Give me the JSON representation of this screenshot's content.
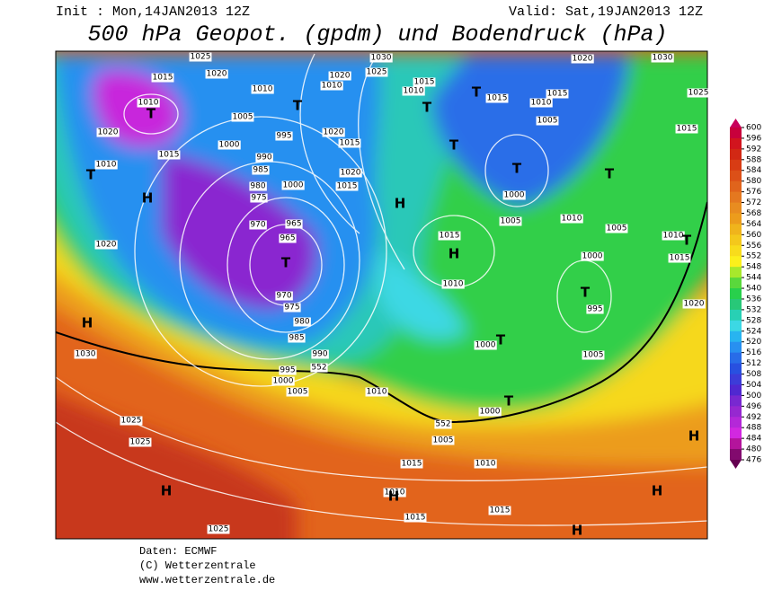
{
  "header": {
    "init": "Init : Mon,14JAN2013 12Z",
    "valid": "Valid: Sat,19JAN2013 12Z",
    "title": "500 hPa Geopot. (gpdm) und Bodendruck (hPa)"
  },
  "colorbar": {
    "ticks": [
      600,
      596,
      592,
      588,
      584,
      580,
      576,
      572,
      568,
      564,
      560,
      556,
      552,
      548,
      544,
      540,
      536,
      532,
      528,
      524,
      520,
      516,
      512,
      508,
      504,
      500,
      496,
      492,
      488,
      484,
      480,
      476
    ],
    "colors": [
      "#c8003c",
      "#d2141e",
      "#d22814",
      "#d83c14",
      "#dc5018",
      "#e0641c",
      "#e47820",
      "#e88c20",
      "#ec9c1c",
      "#f0b41c",
      "#f4c81c",
      "#f8dc1c",
      "#fcf01c",
      "#a8e82c",
      "#5ad83c",
      "#28d04c",
      "#28c878",
      "#28d0b4",
      "#3cd8e4",
      "#28b4f0",
      "#2890f0",
      "#286ce8",
      "#2850e0",
      "#3c3cd8",
      "#5028d0",
      "#7828d0",
      "#9628d0",
      "#b428d8",
      "#d228e0",
      "#b4149c",
      "#820a6e"
    ],
    "cap_top": "#c8005a",
    "cap_bottom": "#640050"
  },
  "map": {
    "isobar_labels": [
      1025,
      1020,
      1015,
      1010,
      1005,
      1000,
      995,
      990,
      985,
      980,
      975,
      970,
      965,
      965,
      970,
      975,
      980,
      985,
      990,
      995,
      1000,
      1005,
      1010,
      1020,
      1015,
      1020,
      1015,
      1000,
      1020,
      1010,
      1025,
      1030,
      1010,
      1010,
      1015,
      1015,
      1010,
      1015,
      1005,
      1020,
      1030,
      1025,
      1015,
      1020,
      1015,
      1010,
      1020,
      1030,
      1000,
      1005,
      1010,
      1015,
      1005,
      1010,
      1015,
      1000,
      995,
      1010,
      1000,
      1005,
      1020,
      1000,
      1005,
      1015,
      1010,
      1010,
      1015,
      1015,
      1025,
      1025,
      1025
    ],
    "height_labels": [
      552,
      552
    ],
    "centers": [
      "T",
      "T",
      "T",
      "T",
      "H",
      "H",
      "T",
      "T",
      "T",
      "T",
      "T",
      "H",
      "T",
      "T",
      "T",
      "H",
      "H",
      "H",
      "H",
      "H",
      "H",
      "T"
    ]
  },
  "footer": [
    "Daten: ECMWF",
    "(C) Wetterzentrale",
    "www.wetterzentrale.de"
  ]
}
